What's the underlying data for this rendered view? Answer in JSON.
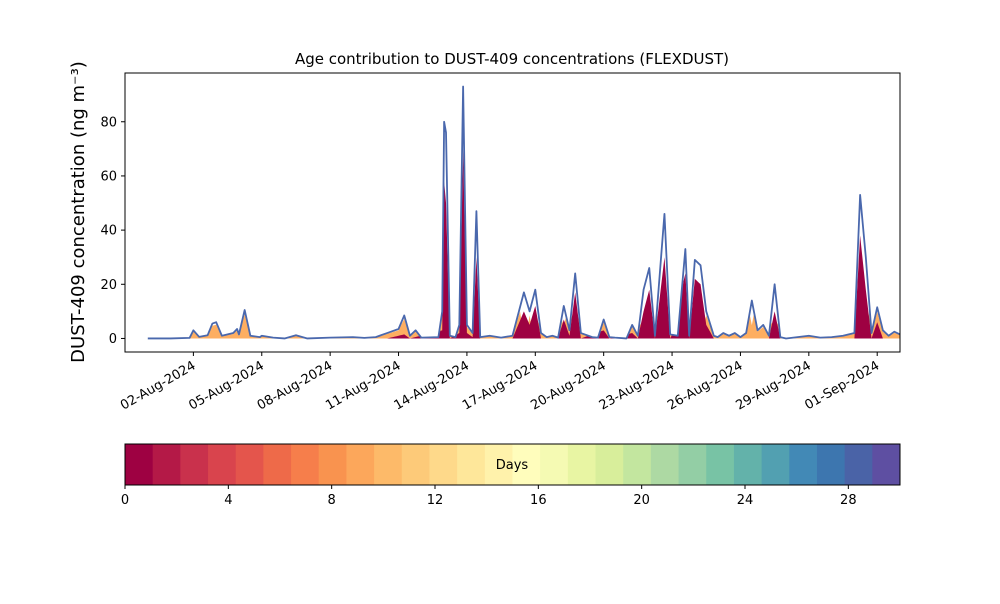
{
  "chart_data": {
    "type": "area",
    "title": "Age contribution to DUST-409 concentrations (FLEXDUST)",
    "ylabel": "DUST-409 concentration (ng m⁻³)",
    "xlabel": "",
    "x_start": "2024-07-31",
    "x_end": "2024-09-01",
    "xlim": [
      "2024-07-30",
      "2024-09-02"
    ],
    "ylim": [
      -5,
      98
    ],
    "yticks": [
      0,
      20,
      40,
      60,
      80
    ],
    "xticks": [
      "02-Aug-2024",
      "05-Aug-2024",
      "08-Aug-2024",
      "11-Aug-2024",
      "14-Aug-2024",
      "17-Aug-2024",
      "20-Aug-2024",
      "23-Aug-2024",
      "26-Aug-2024",
      "29-Aug-2024",
      "01-Sep-2024"
    ],
    "xtick_dates": [
      "2024-08-02",
      "2024-08-05",
      "2024-08-08",
      "2024-08-11",
      "2024-08-14",
      "2024-08-17",
      "2024-08-20",
      "2024-08-23",
      "2024-08-26",
      "2024-08-29",
      "2024-09-01"
    ],
    "series": [
      {
        "name": "total",
        "color": "#4a68ad",
        "points": [
          [
            "2024-07-31",
            0
          ],
          [
            "2024-08-01",
            0
          ],
          [
            "2024-08-01 20:00",
            0.2
          ],
          [
            "2024-08-02",
            3
          ],
          [
            "2024-08-02 06:00",
            0.6
          ],
          [
            "2024-08-02 15:00",
            1.2
          ],
          [
            "2024-08-02 20:00",
            5.5
          ],
          [
            "2024-08-03",
            6
          ],
          [
            "2024-08-03 06:00",
            1
          ],
          [
            "2024-08-03 18:00",
            2
          ],
          [
            "2024-08-03 22:00",
            3.5
          ],
          [
            "2024-08-04",
            1.5
          ],
          [
            "2024-08-04 06:00",
            10.5
          ],
          [
            "2024-08-04 12:00",
            1
          ],
          [
            "2024-08-04 22:00",
            0.5
          ],
          [
            "2024-08-05",
            1
          ],
          [
            "2024-08-05 12:00",
            0.3
          ],
          [
            "2024-08-06",
            0
          ],
          [
            "2024-08-06 12:00",
            1.2
          ],
          [
            "2024-08-07",
            0
          ],
          [
            "2024-08-08",
            0.3
          ],
          [
            "2024-08-08 12:00",
            0.4
          ],
          [
            "2024-08-09",
            0.5
          ],
          [
            "2024-08-09 12:00",
            0.2
          ],
          [
            "2024-08-10",
            0.5
          ],
          [
            "2024-08-10 12:00",
            2
          ],
          [
            "2024-08-11",
            3.5
          ],
          [
            "2024-08-11 06:00",
            8.5
          ],
          [
            "2024-08-11 12:00",
            1
          ],
          [
            "2024-08-11 18:00",
            3
          ],
          [
            "2024-08-12",
            0.3
          ],
          [
            "2024-08-12 18:00",
            0.5
          ],
          [
            "2024-08-12 22:00",
            10
          ],
          [
            "2024-08-13",
            80
          ],
          [
            "2024-08-13 02:00",
            76
          ],
          [
            "2024-08-13 06:00",
            1
          ],
          [
            "2024-08-13 12:00",
            0.5
          ],
          [
            "2024-08-13 16:00",
            5
          ],
          [
            "2024-08-13 20:00",
            93
          ],
          [
            "2024-08-14",
            5
          ],
          [
            "2024-08-14 06:00",
            2
          ],
          [
            "2024-08-14 10:00",
            47
          ],
          [
            "2024-08-14 14:00",
            0.5
          ],
          [
            "2024-08-15",
            1
          ],
          [
            "2024-08-15 12:00",
            0.3
          ],
          [
            "2024-08-16",
            1
          ],
          [
            "2024-08-16 12:00",
            17
          ],
          [
            "2024-08-16 18:00",
            10
          ],
          [
            "2024-08-17",
            18
          ],
          [
            "2024-08-17 06:00",
            2
          ],
          [
            "2024-08-17 12:00",
            0.5
          ],
          [
            "2024-08-17 18:00",
            1
          ],
          [
            "2024-08-18",
            0.3
          ],
          [
            "2024-08-18 06:00",
            12
          ],
          [
            "2024-08-18 12:00",
            3
          ],
          [
            "2024-08-18 18:00",
            24
          ],
          [
            "2024-08-19",
            2
          ],
          [
            "2024-08-19 12:00",
            0.5
          ],
          [
            "2024-08-19 18:00",
            0.3
          ],
          [
            "2024-08-20",
            7
          ],
          [
            "2024-08-20 06:00",
            0.5
          ],
          [
            "2024-08-20 12:00",
            0.3
          ],
          [
            "2024-08-21",
            0
          ],
          [
            "2024-08-21 06:00",
            5
          ],
          [
            "2024-08-21 12:00",
            1
          ],
          [
            "2024-08-21 18:00",
            18
          ],
          [
            "2024-08-22",
            26
          ],
          [
            "2024-08-22 06:00",
            1
          ],
          [
            "2024-08-22 16:00",
            46
          ],
          [
            "2024-08-22 22:00",
            1.5
          ],
          [
            "2024-08-23 06:00",
            1
          ],
          [
            "2024-08-23 14:00",
            33
          ],
          [
            "2024-08-23 18:00",
            1
          ],
          [
            "2024-08-24",
            29
          ],
          [
            "2024-08-24 06:00",
            27
          ],
          [
            "2024-08-24 12:00",
            10
          ],
          [
            "2024-08-24 20:00",
            1
          ],
          [
            "2024-08-25",
            0.5
          ],
          [
            "2024-08-25 06:00",
            2
          ],
          [
            "2024-08-25 12:00",
            1
          ],
          [
            "2024-08-25 18:00",
            2
          ],
          [
            "2024-08-26",
            0.5
          ],
          [
            "2024-08-26 06:00",
            2
          ],
          [
            "2024-08-26 12:00",
            14
          ],
          [
            "2024-08-26 18:00",
            3
          ],
          [
            "2024-08-27",
            5
          ],
          [
            "2024-08-27 06:00",
            1
          ],
          [
            "2024-08-27 12:00",
            20
          ],
          [
            "2024-08-27 18:00",
            0.5
          ],
          [
            "2024-08-28",
            0
          ],
          [
            "2024-08-28 12:00",
            0.5
          ],
          [
            "2024-08-29",
            1
          ],
          [
            "2024-08-29 12:00",
            0.3
          ],
          [
            "2024-08-30",
            0.5
          ],
          [
            "2024-08-30 12:00",
            1
          ],
          [
            "2024-08-31",
            2
          ],
          [
            "2024-08-31 06:00",
            53
          ],
          [
            "2024-08-31 12:00",
            30
          ],
          [
            "2024-08-31 18:00",
            2
          ],
          [
            "2024-09-01",
            11.5
          ],
          [
            "2024-09-01 06:00",
            3
          ],
          [
            "2024-09-01 12:00",
            1
          ],
          [
            "2024-09-01 18:00",
            2.5
          ],
          [
            "2024-09-02",
            1.5
          ]
        ]
      },
      {
        "name": "fresh",
        "color": "#9e0142",
        "points": [
          [
            "2024-07-31",
            0
          ],
          [
            "2024-08-10 12:00",
            0
          ],
          [
            "2024-08-11 06:00",
            1.5
          ],
          [
            "2024-08-11 12:00",
            0
          ],
          [
            "2024-08-12 22:00",
            3
          ],
          [
            "2024-08-13",
            58
          ],
          [
            "2024-08-13 02:00",
            50
          ],
          [
            "2024-08-13 06:00",
            0
          ],
          [
            "2024-08-13 16:00",
            2
          ],
          [
            "2024-08-13 20:00",
            70
          ],
          [
            "2024-08-14",
            2
          ],
          [
            "2024-08-14 06:00",
            0.5
          ],
          [
            "2024-08-14 10:00",
            30
          ],
          [
            "2024-08-14 14:00",
            0
          ],
          [
            "2024-08-16",
            0
          ],
          [
            "2024-08-16 12:00",
            10
          ],
          [
            "2024-08-16 18:00",
            5
          ],
          [
            "2024-08-17",
            12
          ],
          [
            "2024-08-17 06:00",
            0
          ],
          [
            "2024-08-18",
            0
          ],
          [
            "2024-08-18 06:00",
            7
          ],
          [
            "2024-08-18 12:00",
            1
          ],
          [
            "2024-08-18 18:00",
            17
          ],
          [
            "2024-08-19",
            0
          ],
          [
            "2024-08-20",
            3
          ],
          [
            "2024-08-20 06:00",
            0
          ],
          [
            "2024-08-21 06:00",
            2
          ],
          [
            "2024-08-21 12:00",
            0
          ],
          [
            "2024-08-21 18:00",
            10
          ],
          [
            "2024-08-22",
            18
          ],
          [
            "2024-08-22 06:00",
            0
          ],
          [
            "2024-08-22 16:00",
            30
          ],
          [
            "2024-08-22 22:00",
            0
          ],
          [
            "2024-08-23 14:00",
            24
          ],
          [
            "2024-08-23 18:00",
            0
          ],
          [
            "2024-08-24",
            22
          ],
          [
            "2024-08-24 06:00",
            20
          ],
          [
            "2024-08-24 12:00",
            5
          ],
          [
            "2024-08-24 20:00",
            0
          ],
          [
            "2024-08-27 06:00",
            0
          ],
          [
            "2024-08-27 12:00",
            10
          ],
          [
            "2024-08-27 18:00",
            0
          ],
          [
            "2024-08-31",
            0
          ],
          [
            "2024-08-31 06:00",
            38
          ],
          [
            "2024-08-31 12:00",
            18
          ],
          [
            "2024-08-31 18:00",
            0
          ],
          [
            "2024-09-01",
            6
          ],
          [
            "2024-09-01 06:00",
            0
          ],
          [
            "2024-09-02",
            0
          ]
        ]
      }
    ],
    "colorbar": {
      "label": "Days",
      "range": [
        0,
        30
      ],
      "ticks": [
        0,
        4,
        8,
        12,
        16,
        20,
        24,
        28
      ],
      "colors": [
        "#9e0142",
        "#b41947",
        "#c9314c",
        "#d9444d",
        "#e4554c",
        "#ee6a49",
        "#f67e4b",
        "#f9934f",
        "#fca75b",
        "#fdba69",
        "#fdca79",
        "#fed98a",
        "#fee79a",
        "#fff2ab",
        "#fffdbc",
        "#f5fab3",
        "#e8f5a3",
        "#d8ee9b",
        "#c3e69f",
        "#add9a3",
        "#93cea5",
        "#78c3a5",
        "#63b2aa",
        "#52a0b1",
        "#4289b6",
        "#3d76af",
        "#4a63a7",
        "#5e4fa2"
      ]
    }
  }
}
